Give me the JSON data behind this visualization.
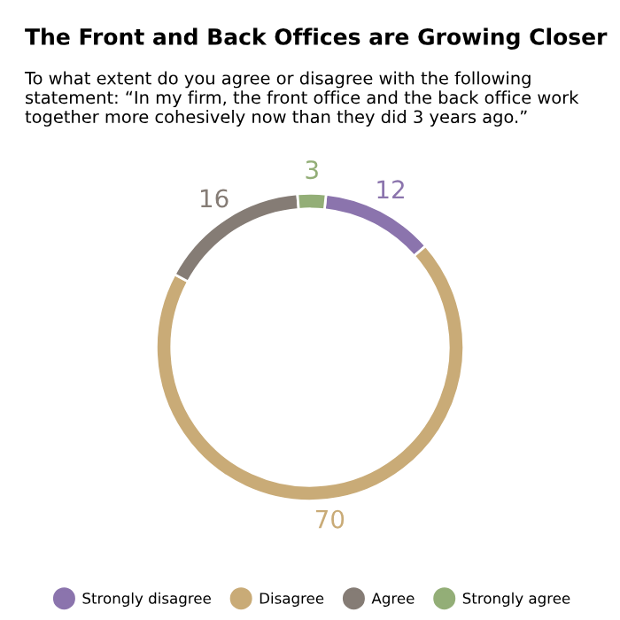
{
  "chart_data": {
    "type": "donut",
    "title": "The Front and Back Offices are Growing Closer",
    "subtitle": "To what extent do you agree or disagree with the following statement: “In my firm, the front office and the back office work together more cohesively now than they did 3 years ago.”",
    "categories": [
      "Strongly disagree",
      "Disagree",
      "Agree",
      "Strongly agree"
    ],
    "values": [
      12,
      70,
      16,
      3
    ],
    "colors": [
      "#8b74ad",
      "#c9ab77",
      "#857c75",
      "#93ae77"
    ],
    "data_labels": true,
    "legend": "bottom"
  }
}
